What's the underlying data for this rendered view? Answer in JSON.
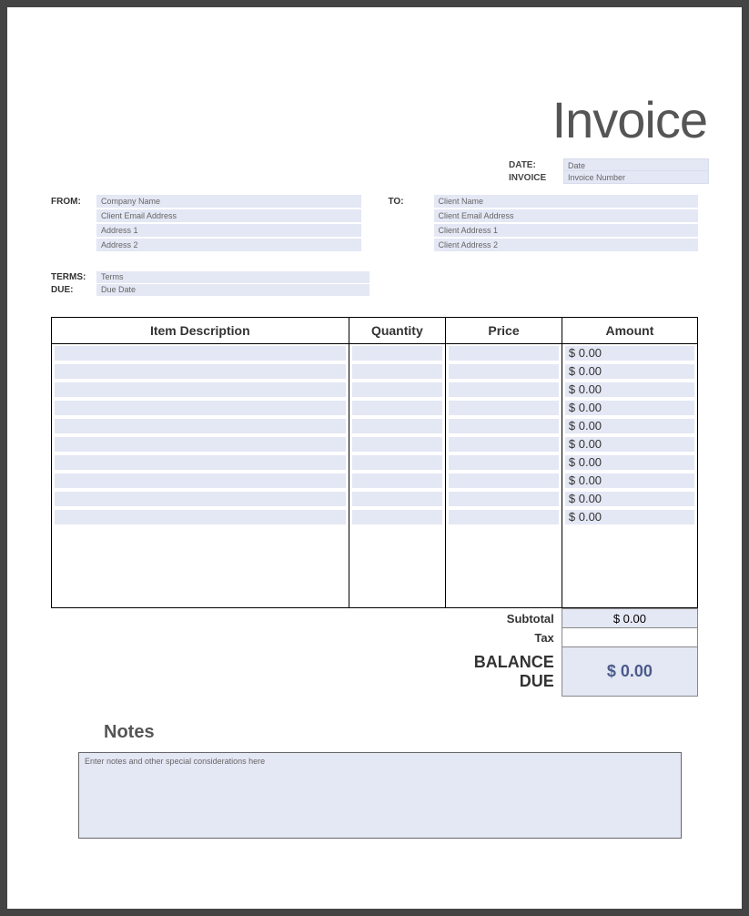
{
  "colors": {
    "page_bg": "#ffffff",
    "frame_bg": "#444444",
    "field_bg": "#e4e7f4",
    "title_color": "#555555",
    "text_color": "#333333",
    "placeholder_color": "#666666",
    "border_color": "#000000",
    "balance_value_color": "#4a5a8a"
  },
  "typography": {
    "title_fontsize": 56,
    "title_weight": 300,
    "header_fontsize": 14,
    "label_fontsize": 10,
    "field_fontsize": 9,
    "amount_fontsize": 13,
    "balance_label_fontsize": 18
  },
  "title": "Invoice",
  "meta": {
    "date_label": "DATE:",
    "date_value": "Date",
    "invoice_label": "INVOICE",
    "invoice_value": "Invoice Number"
  },
  "from": {
    "label": "FROM:",
    "fields": [
      "Company Name",
      "Client Email Address",
      "Address 1",
      "Address 2"
    ]
  },
  "to": {
    "label": "TO:",
    "fields": [
      "Client Name",
      "Client Email Address",
      "Client Address 1",
      "Client Address 2"
    ]
  },
  "terms": {
    "terms_label": "TERMS:",
    "terms_value": "Terms",
    "due_label": "DUE:",
    "due_value": "Due Date"
  },
  "table": {
    "type": "table",
    "columns": [
      "Item Description",
      "Quantity",
      "Price",
      "Amount"
    ],
    "column_widths_pct": [
      46,
      15,
      18,
      21
    ],
    "rows": [
      {
        "description": "",
        "quantity": "",
        "price": "",
        "amount": "$ 0.00"
      },
      {
        "description": "",
        "quantity": "",
        "price": "",
        "amount": "$ 0.00"
      },
      {
        "description": "",
        "quantity": "",
        "price": "",
        "amount": "$ 0.00"
      },
      {
        "description": "",
        "quantity": "",
        "price": "",
        "amount": "$ 0.00"
      },
      {
        "description": "",
        "quantity": "",
        "price": "",
        "amount": "$ 0.00"
      },
      {
        "description": "",
        "quantity": "",
        "price": "",
        "amount": "$ 0.00"
      },
      {
        "description": "",
        "quantity": "",
        "price": "",
        "amount": "$ 0.00"
      },
      {
        "description": "",
        "quantity": "",
        "price": "",
        "amount": "$ 0.00"
      },
      {
        "description": "",
        "quantity": "",
        "price": "",
        "amount": "$ 0.00"
      },
      {
        "description": "",
        "quantity": "",
        "price": "",
        "amount": "$ 0.00"
      }
    ],
    "row_bg": "#e4e7f4",
    "border_color": "#000000"
  },
  "totals": {
    "subtotal_label": "Subtotal",
    "subtotal_value": "$ 0.00",
    "tax_label": "Tax",
    "tax_value": "",
    "balance_label": "BALANCE DUE",
    "balance_value": "$ 0.00"
  },
  "notes": {
    "heading": "Notes",
    "placeholder": "Enter notes and other special considerations here"
  }
}
